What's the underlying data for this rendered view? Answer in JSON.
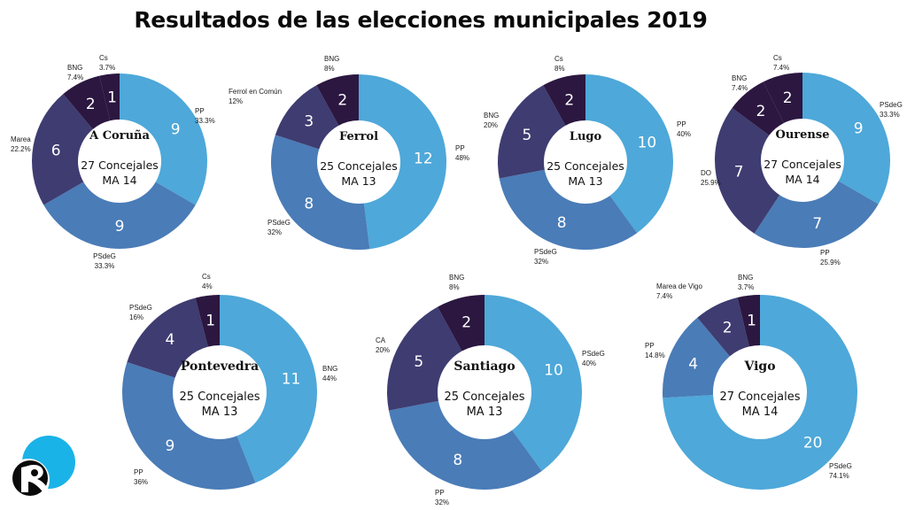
{
  "title": "Resultados de las elecciones municipales 2019",
  "colors": {
    "c1": "#4ea8d9",
    "c2": "#4a7cb7",
    "c3": "#3e3c71",
    "c4": "#2b1740",
    "text_dark": "#1a1a1a",
    "label_white": "#ffffff"
  },
  "logo": {
    "icon": "r-logo-icon",
    "primary": "#1ab3e8",
    "dark": "#0a0a0a"
  },
  "chart_data": [
    {
      "type": "pie",
      "style": "donut",
      "city": "A Coruña",
      "concejales": "27 Concejales",
      "ma": "MA 14",
      "slices": [
        {
          "party": "PP",
          "seats": 9,
          "pct": "33.3%"
        },
        {
          "party": "PSdeG",
          "seats": 9,
          "pct": "33.3%"
        },
        {
          "party": "Marea",
          "seats": 6,
          "pct": "22.2%"
        },
        {
          "party": "BNG",
          "seats": 2,
          "pct": "7.4%"
        },
        {
          "party": "Cs",
          "seats": 1,
          "pct": "3.7%"
        }
      ]
    },
    {
      "type": "pie",
      "style": "donut",
      "city": "Ferrol",
      "concejales": "25 Concejales",
      "ma": "MA 13",
      "slices": [
        {
          "party": "PP",
          "seats": 12,
          "pct": "48%"
        },
        {
          "party": "PSdeG",
          "seats": 8,
          "pct": "32%"
        },
        {
          "party": "Ferrol en Común",
          "seats": 3,
          "pct": "12%"
        },
        {
          "party": "BNG",
          "seats": 2,
          "pct": "8%"
        }
      ]
    },
    {
      "type": "pie",
      "style": "donut",
      "city": "Lugo",
      "concejales": "25 Concejales",
      "ma": "MA 13",
      "slices": [
        {
          "party": "PP",
          "seats": 10,
          "pct": "40%"
        },
        {
          "party": "PSdeG",
          "seats": 8,
          "pct": "32%"
        },
        {
          "party": "BNG",
          "seats": 5,
          "pct": "20%"
        },
        {
          "party": "Cs",
          "seats": 2,
          "pct": "8%"
        }
      ]
    },
    {
      "type": "pie",
      "style": "donut",
      "city": "Ourense",
      "concejales": "27 Concejales",
      "ma": "MA 14",
      "slices": [
        {
          "party": "PSdeG",
          "seats": 9,
          "pct": "33.3%"
        },
        {
          "party": "PP",
          "seats": 7,
          "pct": "25.9%"
        },
        {
          "party": "DO",
          "seats": 7,
          "pct": "25.9%"
        },
        {
          "party": "BNG",
          "seats": 2,
          "pct": "7.4%"
        },
        {
          "party": "Cs",
          "seats": 2,
          "pct": "7.4%"
        }
      ]
    },
    {
      "type": "pie",
      "style": "donut",
      "city": "Pontevedra",
      "concejales": "25 Concejales",
      "ma": "MA 13",
      "slices": [
        {
          "party": "BNG",
          "seats": 11,
          "pct": "44%"
        },
        {
          "party": "PP",
          "seats": 9,
          "pct": "36%"
        },
        {
          "party": "PSdeG",
          "seats": 4,
          "pct": "16%"
        },
        {
          "party": "Cs",
          "seats": 1,
          "pct": "4%"
        }
      ]
    },
    {
      "type": "pie",
      "style": "donut",
      "city": "Santiago",
      "concejales": "25 Concejales",
      "ma": "MA 13",
      "slices": [
        {
          "party": "PSdeG",
          "seats": 10,
          "pct": "40%"
        },
        {
          "party": "PP",
          "seats": 8,
          "pct": "32%"
        },
        {
          "party": "CA",
          "seats": 5,
          "pct": "20%"
        },
        {
          "party": "BNG",
          "seats": 2,
          "pct": "8%"
        }
      ]
    },
    {
      "type": "pie",
      "style": "donut",
      "city": "Vigo",
      "concejales": "27 Concejales",
      "ma": "MA 14",
      "slices": [
        {
          "party": "PSdeG",
          "seats": 20,
          "pct": "74.1%"
        },
        {
          "party": "PP",
          "seats": 4,
          "pct": "14.8%"
        },
        {
          "party": "Marea de Vigo",
          "seats": 2,
          "pct": "7.4%"
        },
        {
          "party": "BNG",
          "seats": 1,
          "pct": "3.7%"
        }
      ]
    }
  ]
}
